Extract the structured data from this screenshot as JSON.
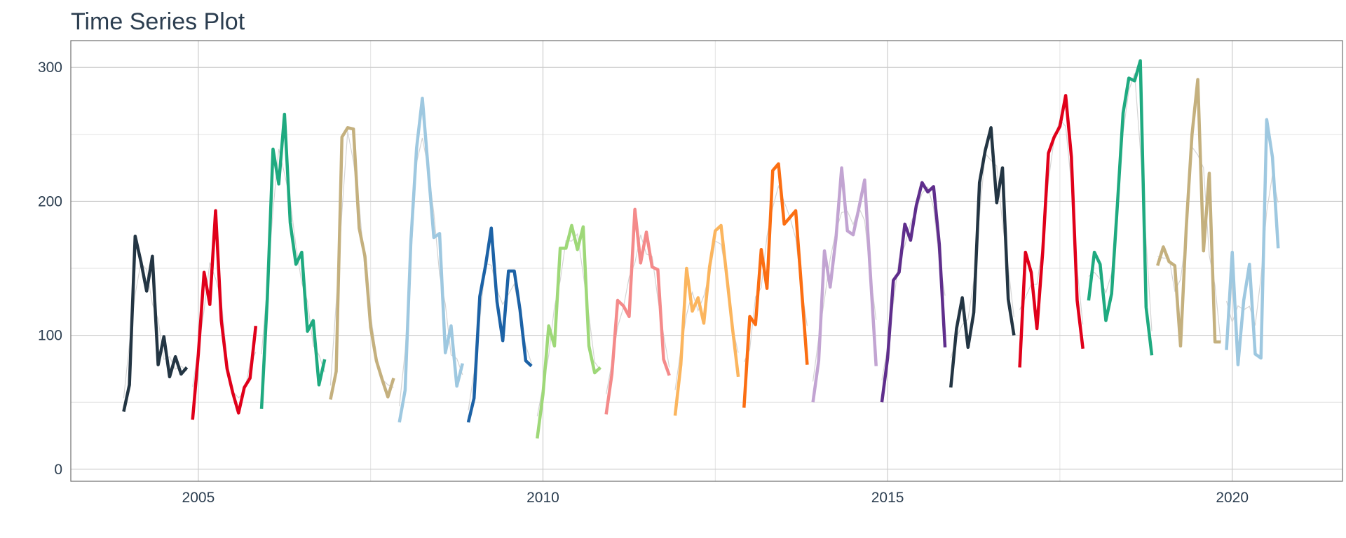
{
  "chart_data": {
    "type": "line",
    "title": "Time Series Plot",
    "xlabel": "",
    "ylabel": "",
    "xlim": [
      2003.15,
      2021.6
    ],
    "ylim": [
      -9,
      320
    ],
    "x_ticks": [
      2005,
      2010,
      2015,
      2020
    ],
    "y_ticks": [
      0,
      100,
      200,
      300
    ],
    "grid": true,
    "legend": "none",
    "series": [
      {
        "color": "#233543",
        "start": 2003.917,
        "values": [
          43,
          63,
          174,
          155,
          133,
          159,
          78,
          99,
          69,
          84,
          71,
          76
        ]
      },
      {
        "color": "#e0001a",
        "start": 2004.917,
        "values": [
          37,
          86,
          147,
          123,
          193,
          111,
          75,
          57,
          42,
          61,
          68,
          107
        ]
      },
      {
        "color": "#1faa80",
        "start": 2005.917,
        "values": [
          45,
          127,
          239,
          213,
          265,
          184,
          153,
          162,
          103,
          111,
          63,
          82
        ]
      },
      {
        "color": "#c4b07e",
        "start": 2006.917,
        "values": [
          52,
          73,
          248,
          255,
          254,
          180,
          159,
          106,
          81,
          67,
          54,
          68
        ]
      },
      {
        "color": "#9ec8e0",
        "start": 2007.917,
        "values": [
          35,
          59,
          170,
          240,
          277,
          225,
          173,
          176,
          87,
          107,
          62,
          79
        ]
      },
      {
        "color": "#1c62a6",
        "start": 2008.917,
        "values": [
          35,
          53,
          129,
          152,
          180,
          125,
          96,
          148,
          148,
          119,
          81,
          77
        ]
      },
      {
        "color": "#9ed878",
        "start": 2009.917,
        "values": [
          23,
          56,
          107,
          92,
          165,
          165,
          182,
          164,
          181,
          92,
          72,
          76
        ]
      },
      {
        "color": "#f48a8a",
        "start": 2010.917,
        "values": [
          41,
          71,
          126,
          122,
          114,
          194,
          154,
          177,
          151,
          149,
          82,
          70
        ]
      },
      {
        "color": "#fbb55e",
        "start": 2011.917,
        "values": [
          40,
          78,
          150,
          118,
          128,
          109,
          151,
          178,
          182,
          144,
          105,
          69
        ]
      },
      {
        "color": "#fb6e12",
        "start": 2012.917,
        "values": [
          46,
          114,
          108,
          164,
          135,
          223,
          228,
          183,
          188,
          193,
          136,
          78
        ]
      },
      {
        "color": "#c2a4d2",
        "start": 2013.917,
        "values": [
          50,
          81,
          163,
          136,
          172,
          225,
          178,
          175,
          195,
          216,
          146,
          77
        ]
      },
      {
        "color": "#5f2e8c",
        "start": 2014.917,
        "values": [
          50,
          83,
          141,
          147,
          183,
          171,
          197,
          214,
          207,
          211,
          168,
          91
        ]
      },
      {
        "color": "#233543",
        "start": 2015.917,
        "values": [
          61,
          105,
          128,
          91,
          117,
          214,
          238,
          255,
          199,
          225,
          127,
          100
        ]
      },
      {
        "color": "#e0001a",
        "start": 2016.917,
        "values": [
          76,
          162,
          147,
          105,
          162,
          236,
          248,
          256,
          279,
          233,
          126,
          90
        ]
      },
      {
        "color": "#1faa80",
        "start": 2017.917,
        "values": [
          126,
          162,
          153,
          111,
          131,
          197,
          266,
          292,
          290,
          305,
          121,
          85
        ]
      },
      {
        "color": "#c4b07e",
        "start": 2018.917,
        "values": [
          152,
          166,
          155,
          152,
          92,
          181,
          250,
          291,
          163,
          221,
          95,
          95
        ]
      },
      {
        "color": "#9ec8e0",
        "start": 2019.917,
        "values": [
          89,
          162,
          78,
          126,
          153,
          86,
          83,
          261,
          233,
          165
        ]
      }
    ]
  }
}
